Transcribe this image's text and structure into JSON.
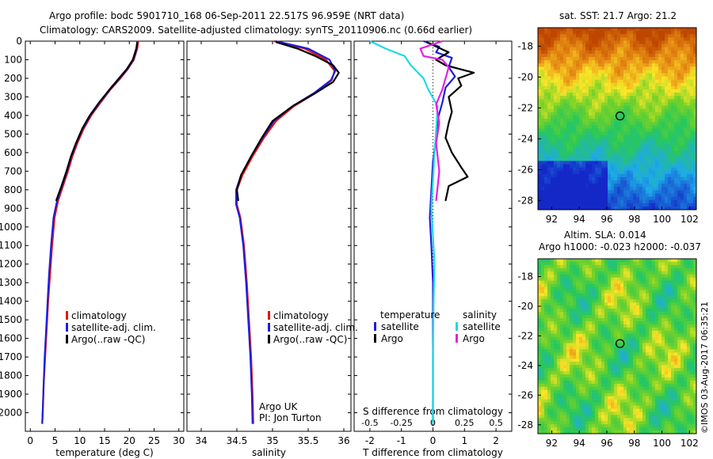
{
  "header": {
    "title_line1": "Argo profile: bodc 5901710_168 06-Sep-2011 22.517S 96.959E (NRT data)",
    "title_line2": "Climatology: CARS2009. Satellite-adjusted climatology: synTS_20110906.nc (0.66d earlier)"
  },
  "footer": {
    "credit": "©IMOS 03-Aug-2017 06:35:21"
  },
  "colors": {
    "climatology": "#e8140c",
    "satellite": "#1e1edc",
    "argo": "#000000",
    "sat_salinity": "#1ed8e6",
    "argo_salinity": "#e61ee6"
  },
  "chart_data": [
    {
      "type": "line",
      "id": "temperature",
      "xlabel": "temperature (deg C)",
      "xlim": [
        -1,
        31
      ],
      "xticks": [
        "0",
        "5",
        "10",
        "15",
        "20",
        "25",
        "30"
      ],
      "ylim": [
        2100,
        0
      ],
      "yticks": [
        "0",
        "100",
        "200",
        "300",
        "400",
        "500",
        "600",
        "700",
        "800",
        "900",
        "1000",
        "1100",
        "1200",
        "1300",
        "1400",
        "1500",
        "1600",
        "1700",
        "1800",
        "1900",
        "2000"
      ],
      "legend": [
        "climatology",
        "satellite-adj. clim.",
        "Argo(..raw -QC)"
      ],
      "series": [
        {
          "name": "climatology",
          "points": [
            [
              21.8,
              0
            ],
            [
              21.6,
              40
            ],
            [
              20.9,
              100
            ],
            [
              19.7,
              150
            ],
            [
              18.2,
              200
            ],
            [
              16.2,
              260
            ],
            [
              14.2,
              330
            ],
            [
              12.3,
              400
            ],
            [
              10.8,
              470
            ],
            [
              9.5,
              550
            ],
            [
              8.5,
              620
            ],
            [
              7.6,
              700
            ],
            [
              6.6,
              780
            ],
            [
              5.6,
              860
            ],
            [
              4.9,
              950
            ],
            [
              4.4,
              1100
            ],
            [
              4.0,
              1250
            ],
            [
              3.6,
              1400
            ],
            [
              3.3,
              1550
            ],
            [
              3.0,
              1700
            ],
            [
              2.7,
              1850
            ],
            [
              2.5,
              2000
            ],
            [
              2.4,
              2060
            ]
          ]
        },
        {
          "name": "satellite-adj. clim.",
          "points": [
            [
              21.6,
              0
            ],
            [
              21.5,
              40
            ],
            [
              20.8,
              100
            ],
            [
              19.6,
              150
            ],
            [
              18.0,
              200
            ],
            [
              16.1,
              260
            ],
            [
              14.0,
              330
            ],
            [
              12.1,
              400
            ],
            [
              10.6,
              470
            ],
            [
              9.3,
              550
            ],
            [
              8.3,
              620
            ],
            [
              7.4,
              700
            ],
            [
              6.4,
              780
            ],
            [
              5.4,
              860
            ],
            [
              4.7,
              950
            ],
            [
              4.2,
              1100
            ],
            [
              3.8,
              1250
            ],
            [
              3.5,
              1400
            ],
            [
              3.2,
              1550
            ],
            [
              2.9,
              1700
            ],
            [
              2.7,
              1850
            ],
            [
              2.5,
              2000
            ],
            [
              2.4,
              2060
            ]
          ]
        },
        {
          "name": "Argo(..raw -QC)",
          "points": [
            [
              21.6,
              5
            ],
            [
              21.4,
              40
            ],
            [
              20.7,
              100
            ],
            [
              19.5,
              150
            ],
            [
              17.9,
              200
            ],
            [
              16.0,
              260
            ],
            [
              13.9,
              330
            ],
            [
              12.0,
              400
            ],
            [
              10.5,
              470
            ],
            [
              9.2,
              550
            ],
            [
              8.2,
              620
            ],
            [
              7.3,
              700
            ],
            [
              6.3,
              780
            ],
            [
              5.2,
              860
            ]
          ]
        }
      ]
    },
    {
      "type": "line",
      "id": "salinity",
      "xlabel": "salinity",
      "xlim": [
        33.8,
        36.1
      ],
      "xticks": [
        "34",
        "34.5",
        "35",
        "35.5",
        "36"
      ],
      "ylim": [
        2100,
        0
      ],
      "legend": [
        "climatology",
        "satellite-adj. clim.",
        "Argo(..raw -QC)"
      ],
      "annotation": [
        "Argo UK",
        "PI: Jon Turton"
      ],
      "series": [
        {
          "name": "climatology",
          "points": [
            [
              35.02,
              0
            ],
            [
              35.45,
              40
            ],
            [
              35.75,
              100
            ],
            [
              35.87,
              160
            ],
            [
              35.83,
              210
            ],
            [
              35.6,
              280
            ],
            [
              35.3,
              350
            ],
            [
              35.05,
              430
            ],
            [
              34.88,
              520
            ],
            [
              34.72,
              620
            ],
            [
              34.58,
              720
            ],
            [
              34.5,
              800
            ],
            [
              34.5,
              880
            ],
            [
              34.55,
              950
            ],
            [
              34.6,
              1100
            ],
            [
              34.64,
              1300
            ],
            [
              34.67,
              1500
            ],
            [
              34.7,
              1700
            ],
            [
              34.72,
              1900
            ],
            [
              34.73,
              2060
            ]
          ]
        },
        {
          "name": "satellite-adj. clim.",
          "points": [
            [
              35.04,
              0
            ],
            [
              35.5,
              40
            ],
            [
              35.8,
              100
            ],
            [
              35.88,
              160
            ],
            [
              35.82,
              210
            ],
            [
              35.58,
              280
            ],
            [
              35.28,
              350
            ],
            [
              35.02,
              430
            ],
            [
              34.86,
              520
            ],
            [
              34.7,
              620
            ],
            [
              34.56,
              720
            ],
            [
              34.49,
              800
            ],
            [
              34.49,
              880
            ],
            [
              34.54,
              950
            ],
            [
              34.59,
              1100
            ],
            [
              34.63,
              1300
            ],
            [
              34.66,
              1500
            ],
            [
              34.69,
              1700
            ],
            [
              34.71,
              1900
            ],
            [
              34.72,
              2060
            ]
          ]
        },
        {
          "name": "Argo(..raw -QC)",
          "points": [
            [
              35.05,
              5
            ],
            [
              35.35,
              40
            ],
            [
              35.6,
              80
            ],
            [
              35.85,
              130
            ],
            [
              35.93,
              170
            ],
            [
              35.85,
              220
            ],
            [
              35.6,
              280
            ],
            [
              35.28,
              350
            ],
            [
              35.0,
              430
            ],
            [
              34.85,
              520
            ],
            [
              34.7,
              620
            ],
            [
              34.56,
              720
            ],
            [
              34.5,
              800
            ],
            [
              34.52,
              860
            ]
          ]
        }
      ]
    },
    {
      "type": "line",
      "id": "difference",
      "xlabel": "T difference from climatology",
      "xlabel_top": "S difference from climatology",
      "xlim": [
        -2.5,
        2.5
      ],
      "xticks": [
        "-2",
        "-1",
        "0",
        "1",
        "2"
      ],
      "xticks_top": [
        "-0.5",
        "-0.25",
        "0",
        "0.25",
        "0.5"
      ],
      "ylim": [
        2100,
        0
      ],
      "legend_headers": [
        "temperature",
        "salinity"
      ],
      "legend": [
        "satellite",
        "Argo",
        "satellite",
        "Argo"
      ],
      "series": [
        {
          "name": "temperature satellite",
          "points": [
            [
              -0.3,
              0
            ],
            [
              0.2,
              30
            ],
            [
              0.1,
              60
            ],
            [
              0.6,
              90
            ],
            [
              0.5,
              140
            ],
            [
              0.7,
              190
            ],
            [
              0.4,
              250
            ],
            [
              0.3,
              330
            ],
            [
              0.15,
              420
            ],
            [
              0.1,
              520
            ],
            [
              0.0,
              650
            ],
            [
              -0.05,
              800
            ],
            [
              -0.1,
              950
            ],
            [
              -0.05,
              1100
            ],
            [
              0.0,
              1300
            ],
            [
              0.0,
              1500
            ],
            [
              0.0,
              1700
            ],
            [
              0.0,
              1900
            ],
            [
              0.0,
              2060
            ]
          ]
        },
        {
          "name": "temperature Argo",
          "points": [
            [
              -0.2,
              5
            ],
            [
              0.5,
              60
            ],
            [
              0.1,
              100
            ],
            [
              0.4,
              130
            ],
            [
              1.3,
              170
            ],
            [
              0.8,
              200
            ],
            [
              0.9,
              240
            ],
            [
              0.5,
              300
            ],
            [
              0.6,
              380
            ],
            [
              0.5,
              440
            ],
            [
              0.4,
              520
            ],
            [
              0.6,
              600
            ],
            [
              0.9,
              680
            ],
            [
              1.1,
              730
            ],
            [
              0.5,
              780
            ],
            [
              0.4,
              860
            ]
          ]
        },
        {
          "name": "salinity satellite",
          "points": [
            [
              -2.0,
              0
            ],
            [
              -1.5,
              40
            ],
            [
              -0.9,
              80
            ],
            [
              -0.7,
              130
            ],
            [
              -0.3,
              200
            ],
            [
              -0.15,
              260
            ],
            [
              0.15,
              350
            ],
            [
              0.1,
              480
            ],
            [
              0.05,
              600
            ],
            [
              0.0,
              750
            ],
            [
              -0.05,
              900
            ],
            [
              0.0,
              1050
            ],
            [
              0.05,
              1200
            ],
            [
              0.02,
              1400
            ],
            [
              0.0,
              1700
            ],
            [
              0.0,
              2060
            ]
          ]
        },
        {
          "name": "salinity Argo",
          "points": [
            [
              0.3,
              0
            ],
            [
              -0.4,
              40
            ],
            [
              -0.3,
              80
            ],
            [
              0.3,
              100
            ],
            [
              0.5,
              140
            ],
            [
              0.4,
              200
            ],
            [
              0.3,
              260
            ],
            [
              0.1,
              340
            ],
            [
              0.2,
              440
            ],
            [
              0.1,
              550
            ],
            [
              0.2,
              700
            ],
            [
              0.1,
              860
            ]
          ]
        }
      ]
    }
  ],
  "maps": [
    {
      "id": "sst-map",
      "title": "sat. SST: 21.7 Argo: 21.2",
      "xticks": [
        "92",
        "94",
        "96",
        "98",
        "100",
        "102"
      ],
      "yticks": [
        "-18",
        "-20",
        "-22",
        "-24",
        "-26",
        "-28"
      ],
      "marker": {
        "lon": 96.96,
        "lat": -22.52
      }
    },
    {
      "id": "sla-map",
      "title_line1": "Altim. SLA: 0.014",
      "title_line2": "Argo h1000: -0.023 h2000: -0.037",
      "xticks": [
        "92",
        "94",
        "96",
        "98",
        "100",
        "102"
      ],
      "yticks": [
        "-18",
        "-20",
        "-22",
        "-24",
        "-26",
        "-28"
      ],
      "marker": {
        "lon": 96.96,
        "lat": -22.52
      }
    }
  ]
}
